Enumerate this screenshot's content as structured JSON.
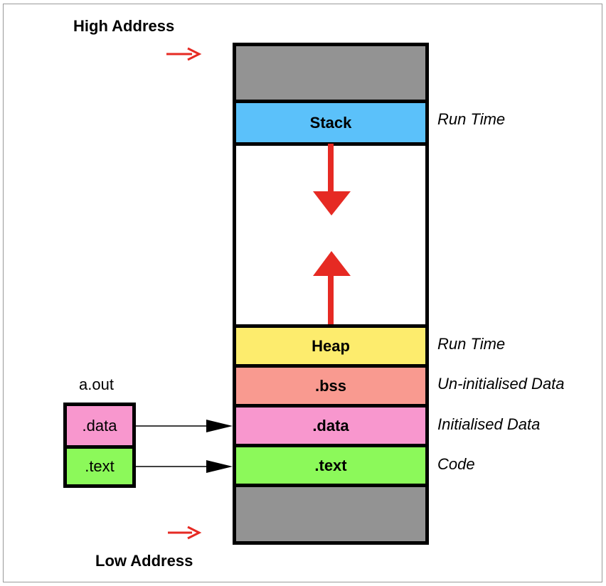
{
  "labels": {
    "high_address": "High Address",
    "low_address": "Low Address",
    "aout_title": "a.out"
  },
  "segments": {
    "stack": "Stack",
    "heap": "Heap",
    "bss": ".bss",
    "data": ".data",
    "text": ".text"
  },
  "side_labels": {
    "stack": "Run Time",
    "heap": "Run Time",
    "bss": "Un-initialised Data",
    "data": "Initialised Data",
    "text": "Code"
  },
  "aout_segments": {
    "data": ".data",
    "text": ".text"
  },
  "colors": {
    "reserved": "#939393",
    "stack": "#5bc1fa",
    "heap": "#fdec6d",
    "bss": "#f99a90",
    "data": "#f897ce",
    "text": "#8cf95a",
    "arrow_red": "#e62a23"
  }
}
